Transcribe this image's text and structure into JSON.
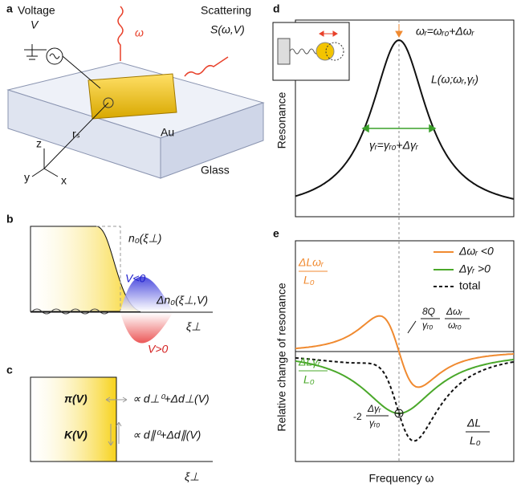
{
  "panels": {
    "a": {
      "label": "a",
      "voltage": "Voltage",
      "voltage_symbol": "V",
      "frequency": "ω",
      "scattering": "Scattering",
      "scattering_symbol": "S(ω,V)",
      "particle": "Au",
      "position": "rₛ",
      "substrate": "Glass",
      "axes": [
        "z",
        "y",
        "x"
      ]
    },
    "b": {
      "label": "b",
      "density": "n₀(ξ⊥)",
      "negative": "V<0",
      "change": "Δn₀(ξ⊥,V)",
      "positive": "V>0",
      "axis": "ξ⊥"
    },
    "c": {
      "label": "c",
      "pi": "π(V)",
      "k": "K(V)",
      "perp": "∝ d⊥⁰+Δd⊥(V)",
      "par": "∝ d∥⁰+Δd∥(V)",
      "axis": "ξ⊥"
    },
    "d": {
      "label": "d",
      "y_label": "Resonance",
      "omega": "ωᵣ=ωᵣ₀+Δωᵣ",
      "lorentz": "L(ω;ωᵣ,γᵣ)",
      "gamma": "γᵣ=γᵣ₀+Δγᵣ"
    },
    "e": {
      "label": "e",
      "y_label": "Relative change of resonance",
      "x_label": "Frequency ω",
      "legend": [
        "Δωᵣ <0",
        "Δγᵣ >0",
        "total"
      ],
      "orange_num": "ΔLωᵣ",
      "orange_den": "L₀",
      "green_num": "ΔLγᵣ",
      "green_den": "L₀",
      "slope_prefix": "8Q",
      "slope_den1": "γᵣ₀",
      "slope_num2": "Δωᵣ",
      "slope_den2": "ωᵣ₀",
      "min_prefix": "-2",
      "min_num": "Δγᵣ",
      "min_den": "γᵣ₀",
      "total_num": "ΔL",
      "total_den": "L₀"
    }
  }
}
